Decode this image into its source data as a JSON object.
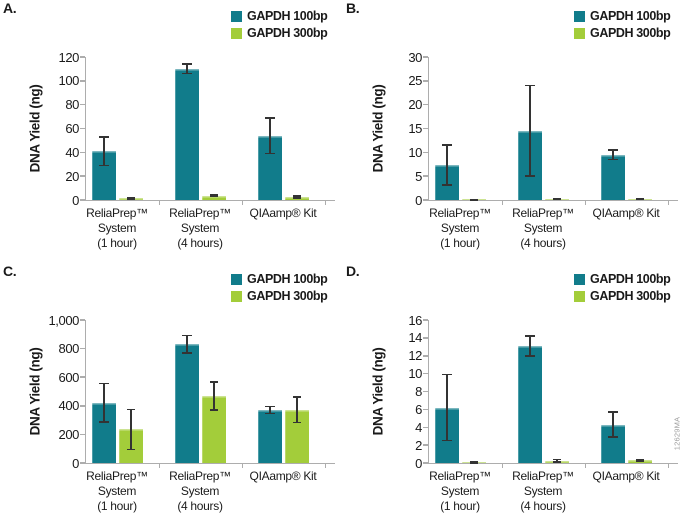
{
  "figure": {
    "watermark": "12629MA",
    "ylabel": "DNA Yield (ng)",
    "legend": [
      {
        "label": "GAPDH 100bp",
        "color_key": "gapdh_100bp"
      },
      {
        "label": "GAPDH 300bp",
        "color_key": "gapdh_300bp"
      }
    ],
    "category_lines": [
      [
        "ReliaPrep™",
        "System",
        "(1 hour)"
      ],
      [
        "ReliaPrep™",
        "System",
        "(4 hours)"
      ],
      [
        "QIAamp® Kit"
      ]
    ],
    "colors": {
      "gapdh_100bp": "#117C8B",
      "gapdh_300bp": "#A3CD3A",
      "error_bar": "#333333",
      "axis": "#ADADAD",
      "text": "#1A1A1A",
      "watermark": "#9E9E9E"
    }
  },
  "chart_data": [
    {
      "type": "bar",
      "panel_label": "A.",
      "ylabel": "DNA Yield (ng)",
      "ylim": [
        0,
        120
      ],
      "yticks": [
        "0",
        "20",
        "40",
        "60",
        "80",
        "100",
        "120"
      ],
      "categories": [
        "ReliaPrep™ System (1 hour)",
        "ReliaPrep™ System (4 hours)",
        "QIAamp® Kit"
      ],
      "series": [
        {
          "name": "GAPDH 100bp",
          "values": [
            41,
            110,
            54
          ],
          "errors": [
            12,
            4,
            15
          ]
        },
        {
          "name": "GAPDH 300bp",
          "values": [
            1.5,
            3.5,
            2.5
          ],
          "errors": [
            0.8,
            0.5,
            0.8
          ]
        }
      ],
      "legend_position": "top-right",
      "grid": false
    },
    {
      "type": "bar",
      "panel_label": "B.",
      "ylabel": "DNA Yield (ng)",
      "ylim": [
        0,
        30
      ],
      "yticks": [
        "0",
        "5",
        "10",
        "15",
        "20",
        "25",
        "30"
      ],
      "categories": [
        "ReliaPrep™ System (1 hour)",
        "ReliaPrep™ System (4 hours)",
        "QIAamp® Kit"
      ],
      "series": [
        {
          "name": "GAPDH 100bp",
          "values": [
            7.3,
            14.5,
            9.5
          ],
          "errors": [
            4.2,
            9.5,
            1.0
          ]
        },
        {
          "name": "GAPDH 300bp",
          "values": [
            0.05,
            0.2,
            0.2
          ],
          "errors": [
            0.05,
            0.1,
            0.1
          ]
        }
      ],
      "legend_position": "top-right",
      "grid": false
    },
    {
      "type": "bar",
      "panel_label": "C.",
      "ylabel": "DNA Yield (ng)",
      "ylim": [
        0,
        1000
      ],
      "yticks": [
        "0",
        "200",
        "400",
        "600",
        "800",
        "1,000"
      ],
      "categories": [
        "ReliaPrep™ System (1 hour)",
        "ReliaPrep™ System (4 hours)",
        "QIAamp® Kit"
      ],
      "series": [
        {
          "name": "GAPDH 100bp",
          "values": [
            420,
            830,
            370
          ],
          "errors": [
            135,
            60,
            25
          ]
        },
        {
          "name": "GAPDH 300bp",
          "values": [
            235,
            470,
            372
          ],
          "errors": [
            140,
            98,
            88
          ]
        }
      ],
      "legend_position": "top-right",
      "grid": false
    },
    {
      "type": "bar",
      "panel_label": "D.",
      "ylabel": "DNA Yield (ng)",
      "ylim": [
        0,
        16
      ],
      "yticks": [
        "0",
        "2",
        "4",
        "6",
        "8",
        "10",
        "12",
        "14",
        "16"
      ],
      "categories": [
        "ReliaPrep™ System (1 hour)",
        "ReliaPrep™ System (4 hours)",
        "QIAamp® Kit"
      ],
      "series": [
        {
          "name": "GAPDH 100bp",
          "values": [
            6.2,
            13.1,
            4.3
          ],
          "errors": [
            3.7,
            1.1,
            1.4
          ]
        },
        {
          "name": "GAPDH 300bp",
          "values": [
            0.1,
            0.25,
            0.3
          ],
          "errors": [
            0.08,
            0.15,
            0.1
          ]
        }
      ],
      "legend_position": "top-right",
      "grid": false
    }
  ]
}
